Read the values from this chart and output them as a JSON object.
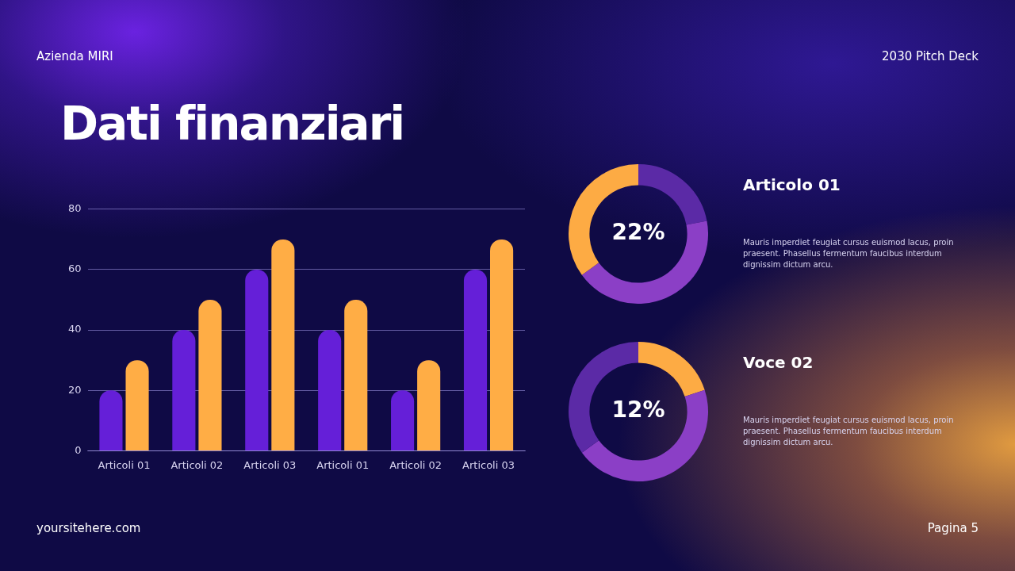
{
  "chart_data": [
    {
      "type": "bar",
      "title": "Dati finanziari",
      "categories": [
        "Articoli 01",
        "Articoli 02",
        "Articoli 03",
        "Articoli 01",
        "Articoli 02",
        "Articoli 03"
      ],
      "series": [
        {
          "color": "#651fd8",
          "values": [
            20,
            40,
            60,
            40,
            20,
            60
          ]
        },
        {
          "color": "#ffad45",
          "values": [
            30,
            50,
            70,
            50,
            30,
            70
          ]
        }
      ],
      "ylim": [
        0,
        80
      ],
      "yticks": [
        0,
        20,
        40,
        60,
        80
      ],
      "grid": "y",
      "legend": false,
      "annotations": [
        "Azienda MIRI",
        "2030 Pitch Deck",
        "yoursitehere.com",
        "Pagina 5"
      ]
    },
    {
      "type": "donut",
      "title": "Articolo 01",
      "subtitle": "Mauris imperdiet feugiat cursus euismod lacus, proin praesent. Phasellus fermentum faucibus interdum dignissim dictum arcu.",
      "categories": [
        null,
        null,
        null
      ],
      "values": [
        22,
        43,
        35
      ],
      "colors": [
        "#5b2aa6",
        "#8b3fc6",
        "#fdab44"
      ],
      "legend": false,
      "annotations": [
        "22%"
      ]
    },
    {
      "type": "donut",
      "title": "Voce 02",
      "subtitle": "Mauris imperdiet feugiat cursus euismod lacus, proin praesent. Phasellus fermentum faucibus interdum dignissim dictum arcu.",
      "categories": [
        null,
        null,
        null
      ],
      "values": [
        20,
        45,
        35
      ],
      "colors": [
        "#fdab44",
        "#8b3fc6",
        "#5b2aa6"
      ],
      "legend": false,
      "annotations": [
        "12%"
      ]
    }
  ]
}
